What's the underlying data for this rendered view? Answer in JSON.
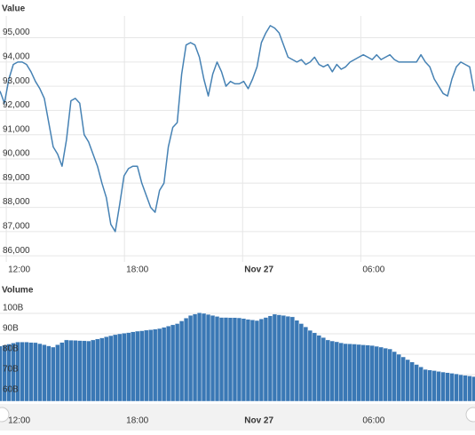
{
  "chart_data": [
    {
      "type": "line",
      "title": "Value",
      "color": "#4682b4",
      "grid": true,
      "x": [
        11.68,
        11.905,
        12.13,
        12.355,
        12.58,
        12.805,
        13.03,
        13.255,
        13.48,
        13.705,
        13.93,
        14.155,
        14.38,
        14.605,
        14.83,
        15.055,
        15.28,
        15.505,
        15.73,
        15.955,
        16.18,
        16.405,
        16.63,
        16.855,
        17.08,
        17.305,
        17.53,
        17.755,
        17.98,
        18.205,
        18.43,
        18.655,
        18.88,
        19.105,
        19.33,
        19.555,
        19.78,
        20.005,
        20.23,
        20.455,
        20.68,
        20.905,
        21.13,
        21.355,
        21.58,
        21.805,
        22.03,
        22.255,
        22.48,
        22.705,
        22.93,
        23.155,
        23.38,
        23.605,
        23.83,
        24.055,
        24.28,
        24.505,
        24.73,
        24.955,
        25.18,
        25.405,
        25.63,
        25.855,
        26.08,
        26.305,
        26.53,
        26.755,
        26.98,
        27.205,
        27.43,
        27.655,
        27.88,
        28.105,
        28.33,
        28.555,
        28.78,
        29.005,
        29.23,
        29.455,
        29.68,
        29.905,
        30.13,
        30.355,
        30.58,
        30.805,
        31.03,
        31.255,
        31.48,
        31.705,
        31.93,
        32.155,
        32.38,
        32.605,
        32.83,
        33.055,
        33.28,
        33.505,
        33.73,
        33.955,
        34.18,
        34.405,
        34.63,
        34.855,
        35.08,
        35.305,
        35.53,
        35.755
      ],
      "values": [
        92800,
        92300,
        93300,
        93900,
        94000,
        94000,
        93900,
        93600,
        93200,
        92900,
        92500,
        91500,
        90500,
        90200,
        89700,
        90800,
        92400,
        92500,
        92300,
        91000,
        90700,
        90200,
        89700,
        89000,
        88400,
        87300,
        87000,
        88100,
        89300,
        89600,
        89700,
        89700,
        89000,
        88500,
        88000,
        87800,
        88700,
        89000,
        90500,
        91300,
        91500,
        93500,
        94700,
        94800,
        94700,
        94200,
        93300,
        92600,
        93500,
        94000,
        93600,
        93000,
        93200,
        93100,
        93100,
        93200,
        92900,
        93300,
        93800,
        94800,
        95200,
        95500,
        95400,
        95200,
        94700,
        94200,
        94100,
        94000,
        94100,
        93900,
        94000,
        94200,
        93900,
        93800,
        93900,
        93600,
        93900,
        93700,
        93800,
        94000,
        94100,
        94200,
        94300,
        94200,
        94100,
        94300,
        94100,
        94200,
        94300,
        94100,
        94000,
        94000,
        94000,
        94000,
        94000,
        94300,
        94000,
        93800,
        93300,
        93000,
        92700,
        92600,
        93300,
        93800,
        94000,
        93900,
        93800,
        92800
      ],
      "xlim": [
        11.68,
        35.8
      ],
      "xticks": [
        {
          "value": 12,
          "label": "12:00"
        },
        {
          "value": 18,
          "label": "18:00"
        },
        {
          "value": 24,
          "label": "Nov 27"
        },
        {
          "value": 30,
          "label": "06:00"
        }
      ],
      "ylim": [
        85750,
        95900
      ],
      "yticks": [
        {
          "value": 86000,
          "label": "86,000"
        },
        {
          "value": 87000,
          "label": "87,000"
        },
        {
          "value": 88000,
          "label": "88,000"
        },
        {
          "value": 89000,
          "label": "89,000"
        },
        {
          "value": 90000,
          "label": "90,000"
        },
        {
          "value": 91000,
          "label": "91,000"
        },
        {
          "value": 92000,
          "label": "92,000"
        },
        {
          "value": 93000,
          "label": "93,000"
        },
        {
          "value": 94000,
          "label": "94,000"
        },
        {
          "value": 95000,
          "label": "95,000"
        }
      ]
    },
    {
      "type": "bar",
      "title": "Volume",
      "color": "#3a78b5",
      "grid": true,
      "x": [
        11.68,
        11.905,
        12.13,
        12.355,
        12.58,
        12.805,
        13.03,
        13.255,
        13.48,
        13.705,
        13.93,
        14.155,
        14.38,
        14.605,
        14.83,
        15.055,
        15.28,
        15.505,
        15.73,
        15.955,
        16.18,
        16.405,
        16.63,
        16.855,
        17.08,
        17.305,
        17.53,
        17.755,
        17.98,
        18.205,
        18.43,
        18.655,
        18.88,
        19.105,
        19.33,
        19.555,
        19.78,
        20.005,
        20.23,
        20.455,
        20.68,
        20.905,
        21.13,
        21.355,
        21.58,
        21.805,
        22.03,
        22.255,
        22.48,
        22.705,
        22.93,
        23.155,
        23.38,
        23.605,
        23.83,
        24.055,
        24.28,
        24.505,
        24.73,
        24.955,
        25.18,
        25.405,
        25.63,
        25.855,
        26.08,
        26.305,
        26.53,
        26.755,
        26.98,
        27.205,
        27.43,
        27.655,
        27.88,
        28.105,
        28.33,
        28.555,
        28.78,
        29.005,
        29.23,
        29.455,
        29.68,
        29.905,
        30.13,
        30.355,
        30.58,
        30.805,
        31.03,
        31.255,
        31.48,
        31.705,
        31.93,
        32.155,
        32.38,
        32.605,
        32.83,
        33.055,
        33.28,
        33.505,
        33.73,
        33.955,
        34.18,
        34.405,
        34.63,
        34.855,
        35.08,
        35.305,
        35.53,
        35.755
      ],
      "values": [
        84,
        84.5,
        85,
        85.5,
        86,
        86,
        86,
        85.8,
        85.7,
        85.2,
        84.7,
        84.1,
        83.5,
        84.7,
        85.8,
        87,
        86.9,
        86.8,
        86.7,
        86.6,
        86.5,
        87,
        87.5,
        88,
        88.6,
        89.1,
        89.6,
        90,
        90.3,
        90.6,
        91,
        91.3,
        91.5,
        91.8,
        92,
        92.3,
        92.6,
        93.2,
        93.8,
        94.4,
        95,
        96.3,
        97.7,
        99,
        99.7,
        100.3,
        100,
        99.5,
        99,
        98.5,
        98,
        98,
        97.9,
        97.9,
        97.8,
        97.5,
        97.1,
        96.8,
        96.5,
        97.3,
        98,
        98.8,
        99.6,
        99.3,
        99,
        98.6,
        98.3,
        96.6,
        95,
        93.4,
        91.7,
        90.5,
        89.3,
        88.2,
        87,
        86.5,
        86.1,
        85.6,
        85.2,
        85.1,
        85,
        84.8,
        84.6,
        84.5,
        84.3,
        83.9,
        83.5,
        83,
        82.6,
        81.3,
        80,
        78.7,
        77.4,
        76.2,
        75,
        73.8,
        72.6,
        72.3,
        72,
        71.6,
        71.3,
        71,
        70.7,
        70.4,
        70,
        69.7,
        69.4,
        69.1
      ],
      "xlim": [
        11.68,
        35.8
      ],
      "xticks": [
        {
          "value": 12,
          "label": "12:00"
        },
        {
          "value": 18,
          "label": "18:00"
        },
        {
          "value": 24,
          "label": "Nov 27"
        },
        {
          "value": 30,
          "label": "06:00"
        }
      ],
      "ylim": [
        57,
        106.5
      ],
      "yticks": [
        {
          "value": 60,
          "label": "60B"
        },
        {
          "value": 70,
          "label": "70B"
        },
        {
          "value": 80,
          "label": "80B"
        },
        {
          "value": 90,
          "label": "90B"
        },
        {
          "value": 100,
          "label": "100B"
        }
      ]
    }
  ]
}
